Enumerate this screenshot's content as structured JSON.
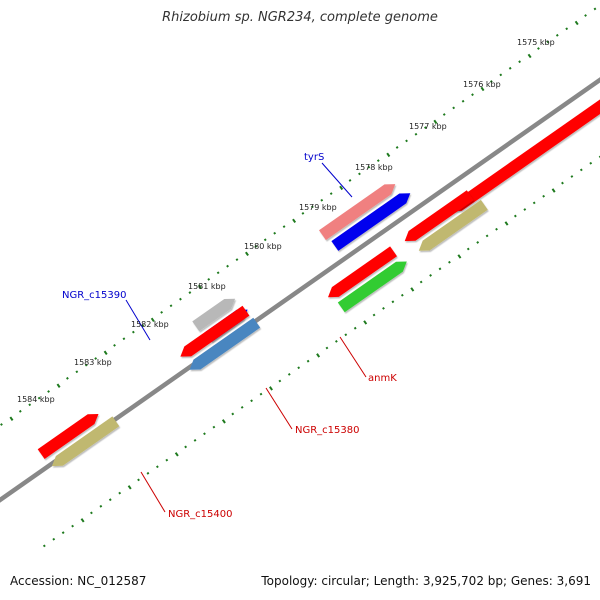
{
  "title": "Rhizobium sp. NGR234, complete genome",
  "footer": {
    "accession": "Accession: NC_012587",
    "summary": "Topology: circular; Length: 3,925,702 bp; Genes: 3,691"
  },
  "colors": {
    "backbone": "#888888",
    "tick": "#1e7a1e",
    "label_blue": "#0000cc",
    "label_red": "#cc0000"
  },
  "scale": {
    "ticks": [
      "1575 kbp",
      "1576 kbp",
      "1577 kbp",
      "1578 kbp",
      "1579 kbp",
      "1580 kbp",
      "1581 kbp",
      "1582 kbp",
      "1583 kbp",
      "1584 kbp"
    ]
  },
  "features": [
    {
      "label": "",
      "color": "#ff0000"
    },
    {
      "label": "tyrS",
      "color": "#f08080"
    },
    {
      "label": "",
      "color": "#0000ee"
    },
    {
      "label": "",
      "color": "#ff0000"
    },
    {
      "label": "anmK",
      "color": "#c0b870"
    },
    {
      "label": "",
      "color": "#ff0000"
    },
    {
      "label": "NGR_c15380",
      "color": "#33cc33"
    },
    {
      "label": "NGR_c15390",
      "color": "#b8b8b8"
    },
    {
      "label": "",
      "color": "#0000ee"
    },
    {
      "label": "",
      "color": "#ff0000"
    },
    {
      "label": "NGR_c15400",
      "color": "#4a86c0"
    },
    {
      "label": "",
      "color": "#ff0000"
    },
    {
      "label": "",
      "color": "#c0b870"
    }
  ]
}
